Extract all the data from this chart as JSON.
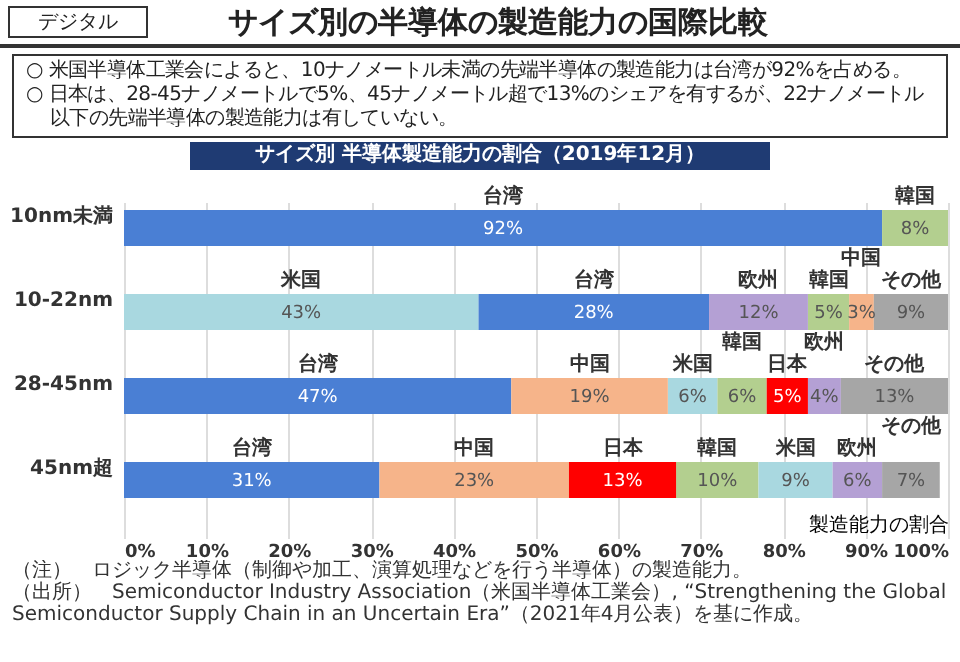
{
  "chart_data": {
    "type": "bar",
    "orientation": "horizontal",
    "title": "サイズ別の半導体の製造能力の国際比較",
    "subtitle": "サイズ別 半導体製造能力の割合（2019年12月）",
    "xlabel": "製造能力の割合",
    "annotations": [
      "デジタル",
      "○ 米国半導体工業会によると、10ナノメートル未満の先端半導体の製造能力は台湾が92%を占める。",
      "○ 日本は、28-45ナノメートルで5%、45ナノメートル超で13%のシェアを有するが、22ナノメートル以下の先端半導体の製造能力は有していない。",
      "（注）　ロジック半導体（制御や加工、演算処理などを行う半導体）の製造能力。",
      "（出所）　Semiconductor Industry Association（米国半導体工業会）, “Strengthening the Global Semiconductor Supply Chain in an Uncertain Era”（2021年4月公表）を基に作成。"
    ],
    "categories": [
      "10nm未満",
      "10-22nm",
      "28-45nm",
      "45nm超"
    ],
    "series": [
      {
        "name": "台湾",
        "color": "#4a7fd4",
        "values": [
          92,
          28,
          47,
          31
        ],
        "base": [
          0,
          43,
          0,
          0
        ],
        "value_labels": [
          "92%",
          "28%",
          "47%",
          "31%"
        ]
      },
      {
        "name": "韓国",
        "color": "#b3cf8f",
        "values": [
          8,
          5,
          6,
          10
        ],
        "base": [
          92,
          83,
          72,
          67
        ],
        "value_labels": [
          "8%",
          "5%",
          "6%",
          "10%"
        ]
      },
      {
        "name": "米国",
        "color": "#a9d8e0",
        "values": [
          null,
          43,
          6,
          9
        ],
        "base": [
          null,
          0,
          66,
          77
        ],
        "value_labels": [
          null,
          "43%",
          "6%",
          "9%"
        ]
      },
      {
        "name": "中国",
        "color": "#f6b48a",
        "values": [
          null,
          3,
          19,
          23
        ],
        "base": [
          null,
          88,
          47,
          31
        ],
        "value_labels": [
          null,
          "3%",
          "19%",
          "23%"
        ]
      },
      {
        "name": "欧州",
        "color": "#b4a0d4",
        "values": [
          null,
          12,
          4,
          6
        ],
        "base": [
          null,
          71,
          83,
          86
        ],
        "value_labels": [
          null,
          "12%",
          "4%",
          "6%"
        ]
      },
      {
        "name": "日本",
        "color": "#ff0000",
        "values": [
          null,
          null,
          5,
          13
        ],
        "base": [
          null,
          null,
          78,
          54
        ],
        "value_labels": [
          null,
          null,
          "5%",
          "13%"
        ]
      },
      {
        "name": "その他",
        "color": "#a6a6a6",
        "values": [
          null,
          9,
          13,
          7
        ],
        "base": [
          null,
          91,
          87,
          92
        ],
        "value_labels": [
          null,
          "9%",
          "13%",
          "7%"
        ]
      }
    ],
    "xlim": [
      0,
      100
    ],
    "xticks": [
      {
        "value": 0,
        "label": "0%"
      },
      {
        "value": 10,
        "label": "10%"
      },
      {
        "value": 20,
        "label": "20%"
      },
      {
        "value": 30,
        "label": "30%"
      },
      {
        "value": 40,
        "label": "40%"
      },
      {
        "value": 50,
        "label": "50%"
      },
      {
        "value": 60,
        "label": "60%"
      },
      {
        "value": 70,
        "label": "70%"
      },
      {
        "value": 80,
        "label": "80%"
      },
      {
        "value": 90,
        "label": "90%"
      },
      {
        "value": 100,
        "label": "100%"
      }
    ],
    "grid": "x"
  }
}
